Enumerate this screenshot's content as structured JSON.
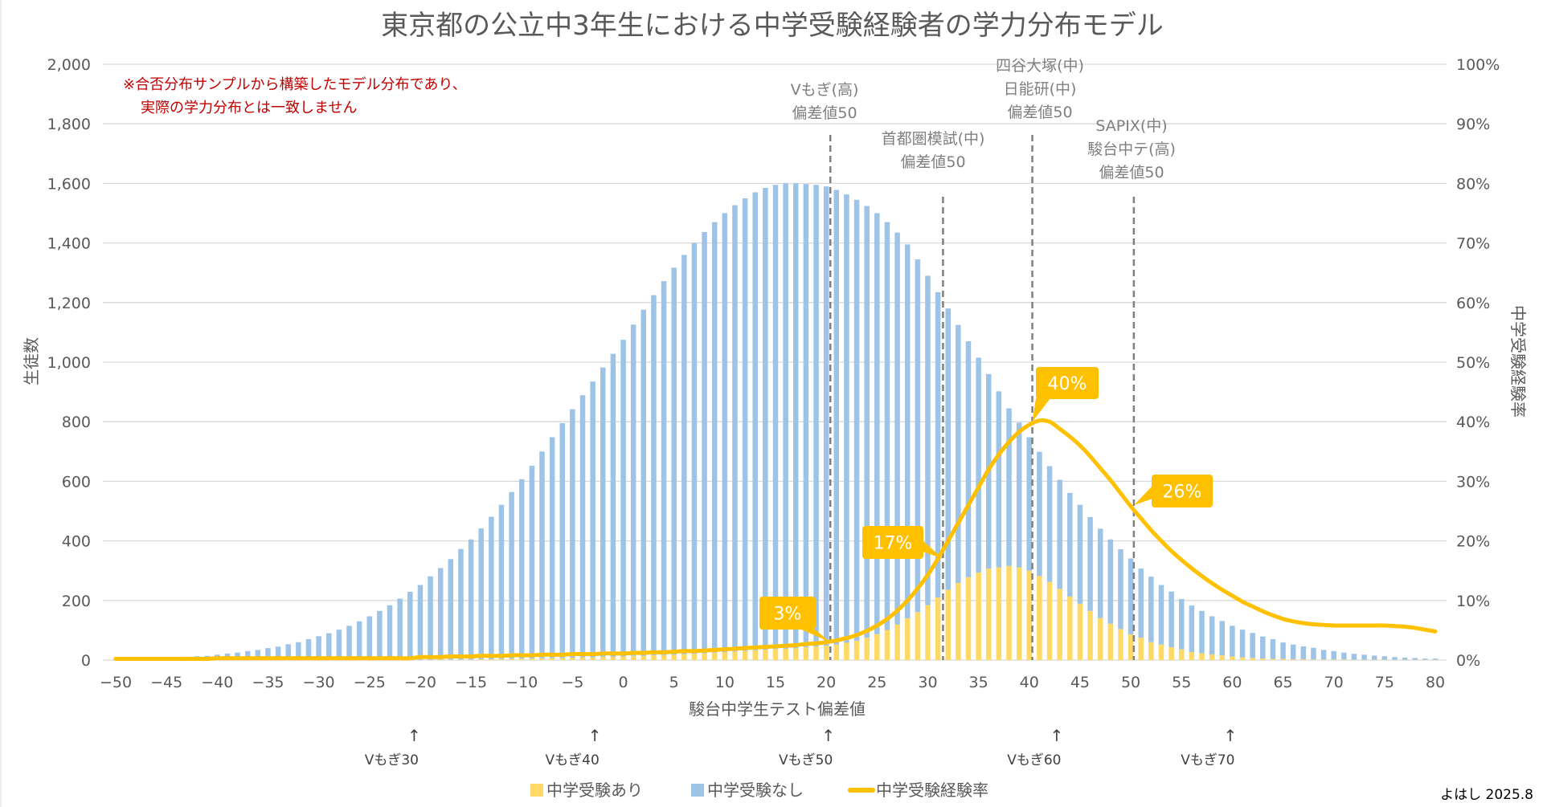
{
  "chart_data": {
    "type": "bar",
    "stacked": true,
    "title": "東京都の公立中3年生における中学受験経験者の学力分布モデル",
    "note": [
      "※合否分布サンプルから構築したモデル分布であり、",
      "実際の学力分布とは一致しません"
    ],
    "xlabel": "駿台中学生テスト偏差値",
    "ylabel": "生徒数",
    "y2label": "中学受験経験率",
    "xlim": [
      -50,
      80
    ],
    "ylim": [
      0,
      2000
    ],
    "y2lim": [
      0,
      100
    ],
    "grid": true,
    "legend_position": "bottom",
    "x_ticks": [
      "-50",
      "-45",
      "-40",
      "-35",
      "-30",
      "-25",
      "-20",
      "-15",
      "-10",
      "-5",
      "0",
      "5",
      "10",
      "15",
      "20",
      "25",
      "30",
      "35",
      "40",
      "45",
      "50",
      "55",
      "60",
      "65",
      "70",
      "75",
      "80"
    ],
    "y_ticks": [
      "0",
      "200",
      "400",
      "600",
      "800",
      "1,000",
      "1,200",
      "1,400",
      "1,600",
      "1,800",
      "2,000"
    ],
    "y2_ticks": [
      "0%",
      "10%",
      "20%",
      "30%",
      "40%",
      "50%",
      "60%",
      "70%",
      "80%",
      "90%",
      "100%"
    ],
    "x": [
      -50,
      -49,
      -48,
      -47,
      -46,
      -45,
      -44,
      -43,
      -42,
      -41,
      -40,
      -39,
      -38,
      -37,
      -36,
      -35,
      -34,
      -33,
      -32,
      -31,
      -30,
      -29,
      -28,
      -27,
      -26,
      -25,
      -24,
      -23,
      -22,
      -21,
      -20,
      -19,
      -18,
      -17,
      -16,
      -15,
      -14,
      -13,
      -12,
      -11,
      -10,
      -9,
      -8,
      -7,
      -6,
      -5,
      -4,
      -3,
      -2,
      -1,
      0,
      1,
      2,
      3,
      4,
      5,
      6,
      7,
      8,
      9,
      10,
      11,
      12,
      13,
      14,
      15,
      16,
      17,
      18,
      19,
      20,
      21,
      22,
      23,
      24,
      25,
      26,
      27,
      28,
      29,
      30,
      31,
      32,
      33,
      34,
      35,
      36,
      37,
      38,
      39,
      40,
      41,
      42,
      43,
      44,
      45,
      46,
      47,
      48,
      49,
      50,
      51,
      52,
      53,
      54,
      55,
      56,
      57,
      58,
      59,
      60,
      61,
      62,
      63,
      64,
      65,
      66,
      67,
      68,
      69,
      70,
      71,
      72,
      73,
      74,
      75,
      76,
      77,
      78,
      79,
      80
    ],
    "series": [
      {
        "name": "中学受験あり",
        "type": "bar",
        "color": "#ffd966",
        "values": [
          0,
          0,
          0,
          0,
          0,
          0,
          0,
          0,
          0,
          0,
          0,
          0,
          0,
          0,
          0,
          0,
          0,
          0,
          0,
          0,
          0,
          0,
          0,
          0,
          0,
          0,
          0,
          1,
          1,
          1,
          1,
          1,
          2,
          2,
          2,
          2,
          3,
          3,
          4,
          5,
          5,
          5,
          6,
          7,
          7,
          8,
          9,
          9,
          11,
          11,
          12,
          14,
          14,
          16,
          17,
          18,
          20,
          21,
          23,
          25,
          27,
          29,
          31,
          33,
          35,
          37,
          38,
          40,
          43,
          45,
          48,
          52,
          58,
          65,
          75,
          87,
          101,
          119,
          140,
          161,
          184,
          210,
          236,
          259,
          278,
          294,
          307,
          311,
          316,
          311,
          300,
          282,
          262,
          239,
          213,
          189,
          165,
          141,
          122,
          104,
          86,
          75,
          60,
          52,
          43,
          36,
          27,
          23,
          19,
          16,
          12,
          9,
          7,
          5,
          4,
          4,
          3,
          3,
          2,
          2,
          2,
          2,
          1,
          1,
          1,
          1,
          1,
          1,
          1,
          1,
          1
        ]
      },
      {
        "name": "中学受験なし",
        "type": "bar",
        "color": "#9dc3e6",
        "values": [
          2,
          3,
          3,
          4,
          5,
          6,
          8,
          11,
          13,
          14,
          18,
          22,
          25,
          30,
          34,
          40,
          45,
          53,
          60,
          70,
          80,
          90,
          102,
          115,
          130,
          147,
          165,
          183,
          205,
          228,
          251,
          280,
          307,
          337,
          371,
          403,
          439,
          478,
          517,
          559,
          602,
          647,
          694,
          741,
          788,
          834,
          880,
          926,
          971,
          1017,
          1063,
          1112,
          1162,
          1209,
          1255,
          1299,
          1340,
          1379,
          1414,
          1445,
          1473,
          1498,
          1519,
          1537,
          1550,
          1558,
          1562,
          1560,
          1555,
          1550,
          1542,
          1526,
          1505,
          1480,
          1449,
          1413,
          1369,
          1316,
          1255,
          1184,
          1106,
          1025,
          944,
          866,
          792,
          721,
          653,
          591,
          529,
          486,
          448,
          417,
          389,
          366,
          348,
          332,
          315,
          300,
          283,
          268,
          255,
          232,
          220,
          200,
          187,
          169,
          156,
          142,
          128,
          115,
          103,
          93,
          84,
          74,
          66,
          55,
          49,
          43,
          39,
          32,
          28,
          23,
          20,
          17,
          14,
          12,
          9,
          7,
          6,
          4,
          4
        ]
      },
      {
        "name": "中学受験経験率",
        "type": "line",
        "axis": "right",
        "unit": "%",
        "color": "#ffc000",
        "values": [
          0.2,
          0.2,
          0.2,
          0.2,
          0.2,
          0.2,
          0.2,
          0.2,
          0.2,
          0.2,
          0.3,
          0.3,
          0.3,
          0.3,
          0.3,
          0.3,
          0.3,
          0.3,
          0.3,
          0.3,
          0.3,
          0.3,
          0.3,
          0.3,
          0.3,
          0.3,
          0.3,
          0.3,
          0.3,
          0.3,
          0.5,
          0.5,
          0.5,
          0.6,
          0.6,
          0.6,
          0.7,
          0.7,
          0.7,
          0.8,
          0.8,
          0.8,
          0.9,
          0.9,
          0.9,
          1.0,
          1.0,
          1.0,
          1.1,
          1.1,
          1.1,
          1.2,
          1.2,
          1.3,
          1.3,
          1.4,
          1.5,
          1.5,
          1.6,
          1.7,
          1.8,
          1.9,
          2.0,
          2.1,
          2.2,
          2.3,
          2.4,
          2.5,
          2.7,
          2.8,
          3.0,
          3.3,
          3.7,
          4.2,
          4.9,
          5.8,
          6.9,
          8.3,
          10.0,
          12.0,
          14.3,
          17.0,
          20.0,
          23.0,
          26.0,
          29.0,
          32.0,
          34.5,
          36.6,
          38.3,
          39.5,
          40.2,
          40.0,
          38.8,
          37.5,
          36.0,
          34.2,
          32.2,
          30.2,
          28.0,
          25.8,
          23.8,
          21.8,
          20.0,
          18.3,
          16.8,
          15.4,
          14.1,
          12.9,
          11.8,
          10.8,
          9.8,
          9.0,
          8.2,
          7.5,
          6.9,
          6.5,
          6.2,
          6.0,
          5.9,
          5.8,
          5.8,
          5.8,
          5.8,
          5.8,
          5.8,
          5.7,
          5.6,
          5.4,
          5.1,
          4.8
        ]
      }
    ],
    "reference_lines": [
      {
        "x": 20.4,
        "label": [
          "Vもぎ(高)",
          "偏差値50"
        ]
      },
      {
        "x": 31.5,
        "label": [
          "首都圏模試(中)",
          "偏差値50"
        ]
      },
      {
        "x": 40.3,
        "label": [
          "四谷大塚(中)",
          "日能研(中)",
          "偏差値50"
        ]
      },
      {
        "x": 50.3,
        "label": [
          "SAPIX(中)",
          "駿台中テ(高)",
          "偏差値50"
        ]
      }
    ],
    "callouts": [
      {
        "x": 20.4,
        "value": 3,
        "text": "3%"
      },
      {
        "x": 31.5,
        "value": 17,
        "text": "17%"
      },
      {
        "x": 40.3,
        "value": 40,
        "text": "40%"
      },
      {
        "x": 50.3,
        "value": 26,
        "text": "26%"
      }
    ],
    "secondary_scale": [
      {
        "x": -20.6,
        "arrow": "↑",
        "label": "Vもぎ30"
      },
      {
        "x": -2.8,
        "arrow": "↑",
        "label": "Vもぎ40"
      },
      {
        "x": 20.2,
        "arrow": "↑",
        "label": "Vもぎ50"
      },
      {
        "x": 42.7,
        "arrow": "↑",
        "label": "Vもぎ60"
      },
      {
        "x": 59.8,
        "arrow": "↑",
        "label": "Vもぎ70"
      }
    ],
    "credit": "よはし 2025.8"
  }
}
